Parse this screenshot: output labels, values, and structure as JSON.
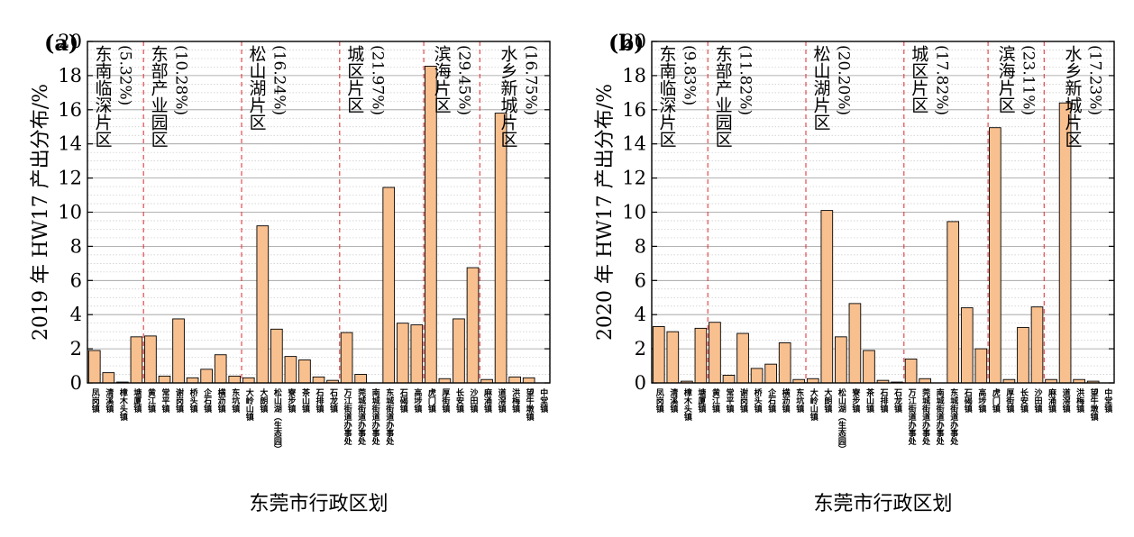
{
  "figure": {
    "colors": {
      "bar_fill": "#f9c08f",
      "bar_stroke": "#000000",
      "region_line": "#e0262b",
      "grid_major": "#9a9a9a",
      "grid_minor": "#c8c8c8"
    }
  },
  "chart_data": [
    {
      "type": "bar",
      "panel_label": "(a)",
      "ylabel": "2019 年 HW17 产出分布/%",
      "xlabel": "东莞市行政区划",
      "ylim": [
        0,
        20
      ],
      "y_ticks": [
        "0",
        "2",
        "4",
        "6",
        "8",
        "10",
        "12",
        "14",
        "16",
        "18",
        "20"
      ],
      "grid": "major and minor horizontal",
      "categories": [
        "凤岗镇",
        "清溪镇",
        "樟木头镇",
        "塘厦镇",
        "黄江镇",
        "常平镇",
        "谢岗镇",
        "桥头镇",
        "企石镇",
        "横沥镇",
        "东坑镇",
        "大岭山镇",
        "大朗镇",
        "松山湖（生态园）",
        "寮步镇",
        "茶山镇",
        "石排镇",
        "石龙镇",
        "万江街道办事处",
        "莞城街道办事处",
        "南城街道办事处",
        "东城街道办事处",
        "石碣镇",
        "高埗镇",
        "虎门镇",
        "厚街镇",
        "长安镇",
        "沙田镇",
        "麻涌镇",
        "道滘镇",
        "洪梅镇",
        "望牛墩镇",
        "中堂镇"
      ],
      "values": [
        1.9,
        0.6,
        0.05,
        2.7,
        2.75,
        0.4,
        3.75,
        0.3,
        0.8,
        1.65,
        0.4,
        0.3,
        9.2,
        3.15,
        1.55,
        1.35,
        0.35,
        0.15,
        2.95,
        0.5,
        0.0,
        11.45,
        3.5,
        3.4,
        18.55,
        0.25,
        3.75,
        6.75,
        0.2,
        15.8,
        0.35,
        0.3,
        0.0
      ],
      "regions": [
        {
          "label": "东南临深片区",
          "pct": "(5.32%)"
        },
        {
          "label": "东部产业园区",
          "pct": "(10.28%)"
        },
        {
          "label": "松山湖片区",
          "pct": "(16.24%)"
        },
        {
          "label": "城区片区",
          "pct": "(21.97%)"
        },
        {
          "label": "滨海片区",
          "pct": "(29.45%)"
        },
        {
          "label": "水乡新城片区",
          "pct": "(16.75%)"
        }
      ]
    },
    {
      "type": "bar",
      "panel_label": "(b)",
      "ylabel": "2020 年 HW17 产出分布/%",
      "xlabel": "东莞市行政区划",
      "ylim": [
        0,
        20
      ],
      "y_ticks": [
        "0",
        "2",
        "4",
        "6",
        "8",
        "10",
        "12",
        "14",
        "16",
        "18",
        "20"
      ],
      "grid": "major and minor horizontal",
      "categories": [
        "凤岗镇",
        "清溪镇",
        "樟木头镇",
        "塘厦镇",
        "黄江镇",
        "常平镇",
        "谢岗镇",
        "桥头镇",
        "企石镇",
        "横沥镇",
        "东坑镇",
        "大岭山镇",
        "大朗镇",
        "松山湖（生态园）",
        "寮步镇",
        "茶山镇",
        "石排镇",
        "石龙镇",
        "万江街道办事处",
        "莞城街道办事处",
        "南城街道办事处",
        "东城街道办事处",
        "石碣镇",
        "高埗镇",
        "虎门镇",
        "厚街镇",
        "长安镇",
        "沙田镇",
        "麻涌镇",
        "道滘镇",
        "洪梅镇",
        "望牛墩镇",
        "中堂镇"
      ],
      "values": [
        3.3,
        3.0,
        0.1,
        3.2,
        3.55,
        0.45,
        2.9,
        0.85,
        1.1,
        2.35,
        0.2,
        0.25,
        10.1,
        2.7,
        4.65,
        1.9,
        0.15,
        0.05,
        1.4,
        0.25,
        0.0,
        9.45,
        4.4,
        2.0,
        14.95,
        0.2,
        3.25,
        4.45,
        0.2,
        16.4,
        0.2,
        0.1,
        0.0
      ],
      "regions": [
        {
          "label": "东南临深片区",
          "pct": "(9.83%)"
        },
        {
          "label": "东部产业园区",
          "pct": "(11.82%)"
        },
        {
          "label": "松山湖片区",
          "pct": "(20.20%)"
        },
        {
          "label": "城区片区",
          "pct": "(17.82%)"
        },
        {
          "label": "滨海片区",
          "pct": "(23.11%)"
        },
        {
          "label": "水乡新城片区",
          "pct": "(17.23%)"
        }
      ]
    }
  ]
}
